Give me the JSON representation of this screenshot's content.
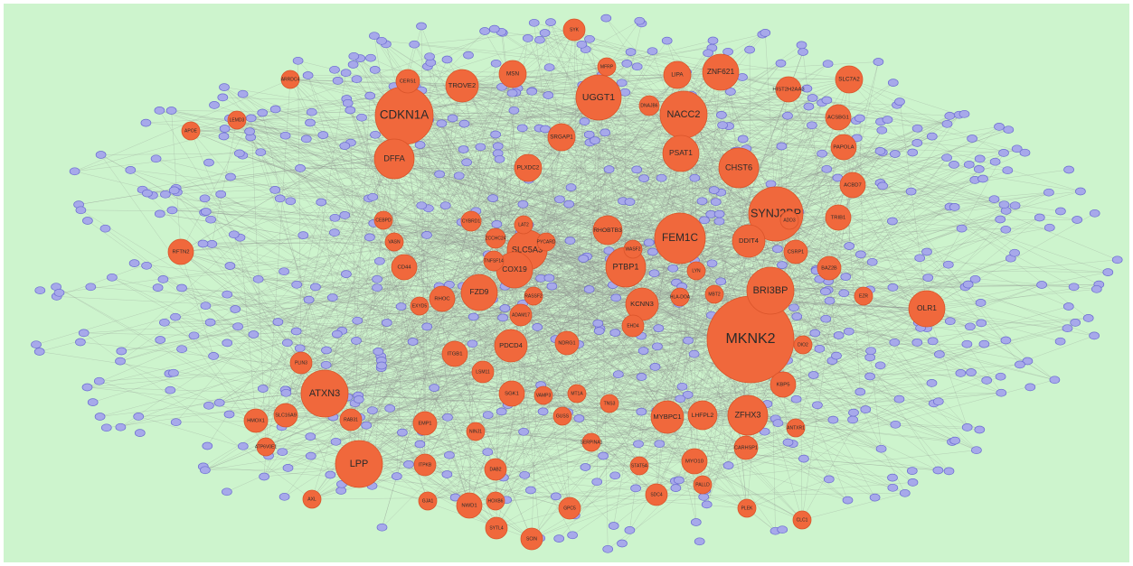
{
  "nodes": [
    "MKNK2",
    "SYNJ2BP",
    "CDKN1A",
    "UGGT1",
    "NACC2",
    "FEM1C",
    "BRI3BP",
    "ATXN3",
    "LPP",
    "DFFA",
    "OLR1",
    "ZFHX3",
    "SLC5A3",
    "PTBP1",
    "COX19",
    "FZD9",
    "CHST6",
    "PSAT1",
    "ZNF621",
    "SLC7A2",
    "KCNN3",
    "DDIT4",
    "RHOBTB3",
    "PDCD4",
    "MYBPC1",
    "LHFPL2",
    "TROVE2",
    "MSN",
    "LIPA",
    "ACSBG1",
    "PAPOLA",
    "ACBD7",
    "TRIB1",
    "RFTN2",
    "HMOX1",
    "SLC16A9",
    "CD44",
    "RHOC",
    "ITGB1",
    "SGK1",
    "NWD1",
    "SCIN",
    "MYO10",
    "KBP5",
    "CSRP1",
    "BAZ2B",
    "PLXDC2",
    "SRGAP1",
    "CERS1",
    "HIST2H2AA3",
    "EMP1",
    "NDRG1",
    "ADAM17",
    "CARHSP1",
    "EHD4",
    "SDC4",
    "GPC5",
    "SYTL4",
    "LSM11",
    "PLIN3",
    "RAB31",
    "ITPKB",
    "DAB2",
    "SYK",
    "MFRP",
    "DNAJB6",
    "CYBRD1",
    "ZCCHC24",
    "TNFSF14",
    "RASSF2",
    "WASF2",
    "LAT2",
    "PYCARD",
    "MT1A",
    "VAMP3",
    "GUSS",
    "TNS3",
    "EXYD5",
    "CEBPD",
    "VASN",
    "NINJ1",
    "GJA1",
    "HOXB6",
    "STAT5A",
    "SERPINA1",
    "PALLD",
    "PLEK",
    "CLC1",
    "AXL",
    "ATP6V0E1",
    "DIO2",
    "EZR",
    "ANTXR1",
    "ADD3",
    "MBT2",
    "HLA-DOA",
    "LYN",
    "ARRDC4",
    "APOE",
    "LEMD3"
  ]
}
